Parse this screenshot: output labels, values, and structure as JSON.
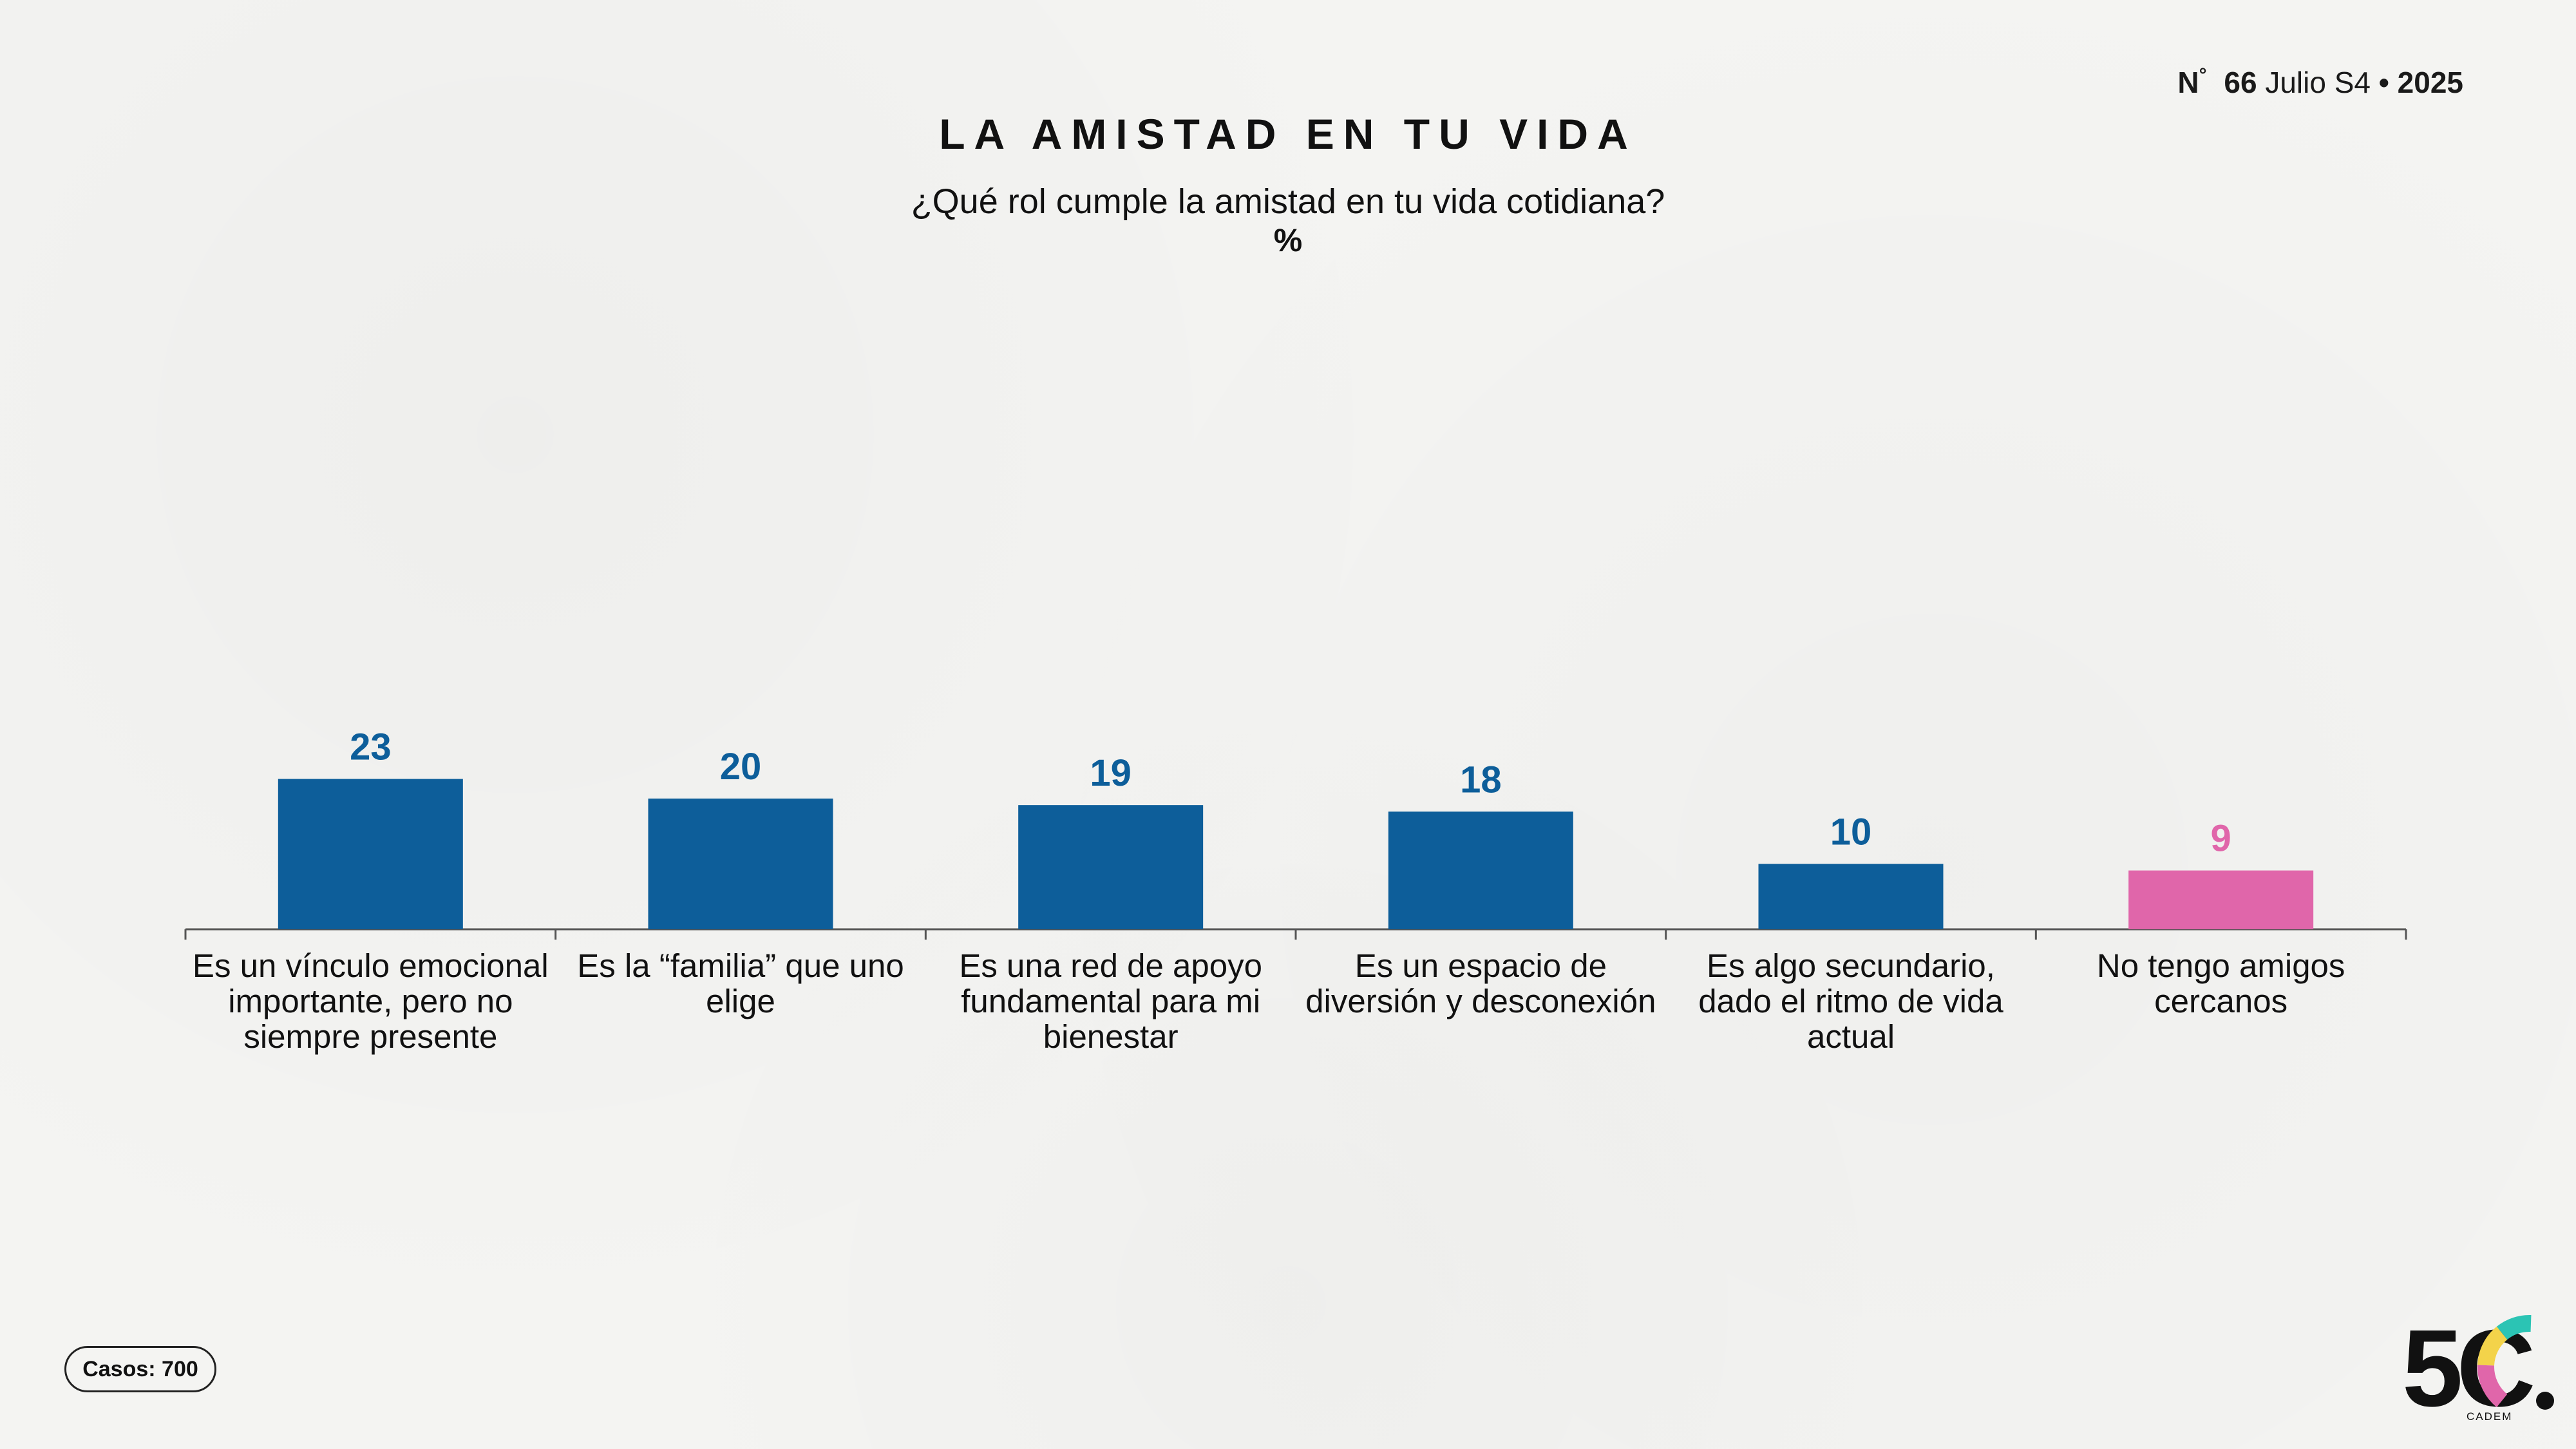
{
  "header": {
    "issue_symbol": "N",
    "issue_degree": "°",
    "issue_number": "66",
    "issue_period": "Julio S4",
    "issue_sep": "•",
    "issue_year": "2025"
  },
  "colors": {
    "primary": "#0d5e9a",
    "highlight": "#e066aa",
    "axis": "#555555"
  },
  "chart_data": {
    "type": "bar",
    "title": "LA AMISTAD EN TU VIDA",
    "subtitle": "¿Qué rol cumple la amistad en tu vida cotidiana?",
    "unit": "%",
    "categories": [
      "Es un vínculo emocional importante, pero no siempre presente",
      "Es la “familia” que uno elige",
      "Es una red de apoyo fundamental para mi bienestar",
      "Es un espacio de diversión y desconexión",
      "Es algo secundario, dado el ritmo de vida actual",
      "No tengo amigos cercanos"
    ],
    "values": [
      23,
      20,
      19,
      18,
      10,
      9
    ],
    "highlight_index": 5,
    "ylim": [
      0,
      25
    ],
    "grid": false,
    "legend": "none",
    "data_labels": true
  },
  "footer": {
    "casos": "Casos: 700",
    "logo_text": "5C",
    "logo_sub": "CADEM"
  }
}
